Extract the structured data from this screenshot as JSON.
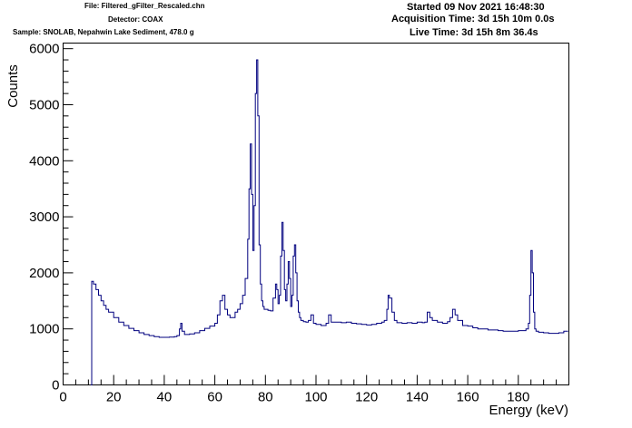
{
  "header": {
    "file": "File: Filtered_gFilter_Rescaled.chn",
    "detector": "Detector: COAX",
    "sample": "Sample: SNOLAB, Nepahwin Lake Sediment, 478.0 g",
    "started": "Started 09 Nov 2021 16:48:30",
    "acquisition": "Acquisition Time: 3d 15h 10m 0.0s",
    "live": "Live Time: 3d 15h 8m 36.4s"
  },
  "chart_data": {
    "type": "line",
    "xlabel": "Energy (keV)",
    "ylabel": "Counts",
    "xlim": [
      0,
      200
    ],
    "ylim": [
      0,
      6100
    ],
    "xticks": [
      0,
      20,
      40,
      60,
      80,
      100,
      120,
      140,
      160,
      180
    ],
    "yticks": [
      0,
      1000,
      2000,
      3000,
      4000,
      5000,
      6000
    ],
    "grid": false,
    "line_color": "#00007f",
    "series": [
      {
        "x": [
          11.0,
          11.3,
          12,
          13,
          14,
          15,
          16,
          17,
          18,
          20,
          22,
          24,
          26,
          28,
          30,
          32,
          34,
          36,
          38,
          40,
          42,
          44,
          45,
          46,
          46.5,
          47,
          48,
          50,
          52,
          54,
          56,
          58,
          60,
          61,
          62,
          63,
          64,
          65,
          66,
          68,
          69,
          70,
          71,
          72,
          73,
          73.5,
          74,
          74.5,
          75,
          75.5,
          76,
          76.5,
          77,
          77.5,
          78,
          78.5,
          79,
          79.5,
          80,
          81,
          82,
          83,
          84,
          84.5,
          85,
          85.5,
          86,
          86.5,
          87,
          87.5,
          88,
          88.5,
          89,
          89.5,
          90,
          90.5,
          91,
          91.5,
          92,
          92.5,
          93,
          93.5,
          94,
          95,
          96,
          97,
          98,
          99,
          100,
          102,
          104,
          105,
          106,
          108,
          110,
          112,
          114,
          116,
          118,
          120,
          122,
          124,
          126,
          127,
          128,
          128.5,
          129,
          130,
          131,
          132,
          134,
          136,
          138,
          140,
          142,
          143,
          144,
          145,
          146,
          148,
          150,
          152,
          153,
          154,
          155,
          156,
          158,
          160,
          162,
          164,
          166,
          168,
          170,
          172,
          174,
          176,
          178,
          180,
          182,
          183,
          184,
          184.5,
          185,
          185.5,
          186,
          186.5,
          187,
          188,
          190,
          192,
          194,
          196,
          198,
          199.5
        ],
        "y": [
          0,
          1850,
          1800,
          1700,
          1600,
          1500,
          1420,
          1350,
          1300,
          1200,
          1120,
          1060,
          1010,
          970,
          930,
          900,
          880,
          860,
          850,
          850,
          855,
          860,
          880,
          1000,
          1100,
          960,
          900,
          910,
          930,
          970,
          1010,
          1050,
          1100,
          1250,
          1500,
          1600,
          1350,
          1250,
          1200,
          1300,
          1350,
          1450,
          1600,
          1900,
          2600,
          3500,
          4300,
          3400,
          2400,
          3200,
          5200,
          5800,
          4800,
          2500,
          1800,
          1500,
          1400,
          1350,
          1350,
          1330,
          1320,
          1550,
          1800,
          1700,
          1450,
          1600,
          2300,
          2900,
          2400,
          1700,
          1500,
          1800,
          2200,
          1900,
          1400,
          1600,
          2300,
          2500,
          2000,
          1500,
          1300,
          1200,
          1150,
          1130,
          1120,
          1150,
          1250,
          1100,
          1080,
          1060,
          1100,
          1250,
          1120,
          1120,
          1110,
          1120,
          1100,
          1090,
          1080,
          1070,
          1080,
          1100,
          1120,
          1150,
          1350,
          1600,
          1550,
          1300,
          1150,
          1110,
          1100,
          1110,
          1100,
          1120,
          1110,
          1120,
          1300,
          1200,
          1150,
          1120,
          1100,
          1130,
          1200,
          1350,
          1250,
          1150,
          1060,
          1050,
          1020,
          1000,
          1000,
          980,
          980,
          970,
          960,
          960,
          960,
          970,
          970,
          1000,
          1100,
          1600,
          2400,
          2000,
          1300,
          1000,
          960,
          940,
          930,
          920,
          920,
          930,
          960,
          950
        ]
      }
    ]
  }
}
